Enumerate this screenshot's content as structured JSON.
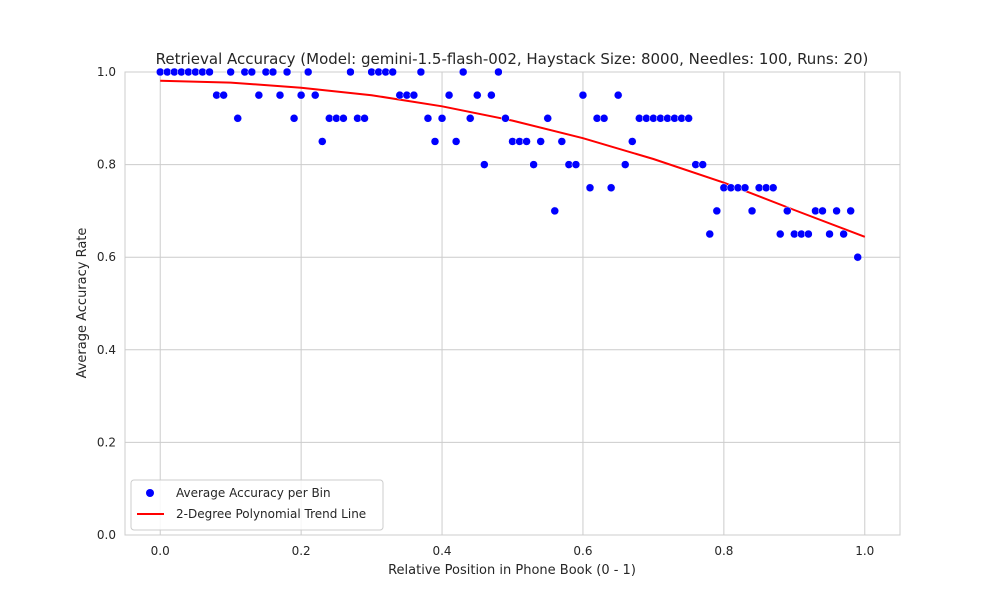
{
  "chart_data": {
    "type": "scatter",
    "title": "Retrieval Accuracy (Model: gemini-1.5-flash-002, Haystack Size: 8000, Needles: 100, Runs: 20)",
    "xlabel": "Relative Position in Phone Book (0 - 1)",
    "ylabel": "Average Accuracy Rate",
    "xlim": [
      -0.05,
      1.05
    ],
    "ylim": [
      0.0,
      1.0
    ],
    "xticks": [
      "0.0",
      "0.2",
      "0.4",
      "0.6",
      "0.8",
      "1.0"
    ],
    "yticks": [
      "0.0",
      "0.2",
      "0.4",
      "0.6",
      "0.8",
      "1.0"
    ],
    "grid": true,
    "legend_position": "lower-left",
    "series": [
      {
        "name": "Average Accuracy per Bin",
        "kind": "scatter",
        "color": "#0000ff",
        "x": [
          0.0,
          0.01,
          0.02,
          0.03,
          0.04,
          0.05,
          0.06,
          0.07,
          0.08,
          0.09,
          0.1,
          0.11,
          0.12,
          0.13,
          0.14,
          0.15,
          0.16,
          0.17,
          0.18,
          0.19,
          0.2,
          0.21,
          0.22,
          0.23,
          0.24,
          0.25,
          0.26,
          0.27,
          0.28,
          0.29,
          0.3,
          0.31,
          0.32,
          0.33,
          0.34,
          0.35,
          0.36,
          0.37,
          0.38,
          0.39,
          0.4,
          0.41,
          0.42,
          0.43,
          0.44,
          0.45,
          0.46,
          0.47,
          0.48,
          0.49,
          0.5,
          0.51,
          0.52,
          0.53,
          0.54,
          0.55,
          0.56,
          0.57,
          0.58,
          0.59,
          0.6,
          0.61,
          0.62,
          0.63,
          0.64,
          0.65,
          0.66,
          0.67,
          0.68,
          0.69,
          0.7,
          0.71,
          0.72,
          0.73,
          0.74,
          0.75,
          0.76,
          0.77,
          0.78,
          0.79,
          0.8,
          0.81,
          0.82,
          0.83,
          0.84,
          0.85,
          0.86,
          0.87,
          0.88,
          0.89,
          0.9,
          0.91,
          0.92,
          0.93,
          0.94,
          0.95,
          0.96,
          0.97,
          0.98,
          0.99
        ],
        "y": [
          1.0,
          1.0,
          1.0,
          1.0,
          1.0,
          1.0,
          1.0,
          1.0,
          0.95,
          0.95,
          1.0,
          0.9,
          1.0,
          1.0,
          0.95,
          1.0,
          1.0,
          0.95,
          1.0,
          0.9,
          0.95,
          1.0,
          0.95,
          0.85,
          0.9,
          0.9,
          0.9,
          1.0,
          0.9,
          0.9,
          1.0,
          1.0,
          1.0,
          1.0,
          0.95,
          0.95,
          0.95,
          1.0,
          0.9,
          0.85,
          0.9,
          0.95,
          0.85,
          1.0,
          0.9,
          0.95,
          0.8,
          0.95,
          1.0,
          0.9,
          0.85,
          0.85,
          0.85,
          0.8,
          0.85,
          0.9,
          0.7,
          0.85,
          0.8,
          0.8,
          0.95,
          0.75,
          0.9,
          0.9,
          0.75,
          0.95,
          0.8,
          0.85,
          0.9,
          0.9,
          0.9,
          0.9,
          0.9,
          0.9,
          0.9,
          0.9,
          0.8,
          0.8,
          0.65,
          0.7,
          0.75,
          0.75,
          0.75,
          0.75,
          0.7,
          0.75,
          0.75,
          0.75,
          0.65,
          0.7,
          0.65,
          0.65,
          0.65,
          0.7,
          0.7,
          0.65,
          0.7,
          0.65,
          0.7,
          0.6
        ]
      },
      {
        "name": "2-Degree Polynomial Trend Line",
        "kind": "line",
        "color": "#ff0000",
        "x": [
          0.0,
          0.1,
          0.2,
          0.3,
          0.4,
          0.5,
          0.6,
          0.7,
          0.8,
          0.9,
          1.0
        ],
        "y": [
          0.981,
          0.977,
          0.966,
          0.95,
          0.926,
          0.895,
          0.857,
          0.812,
          0.761,
          0.702,
          0.644
        ]
      }
    ]
  }
}
